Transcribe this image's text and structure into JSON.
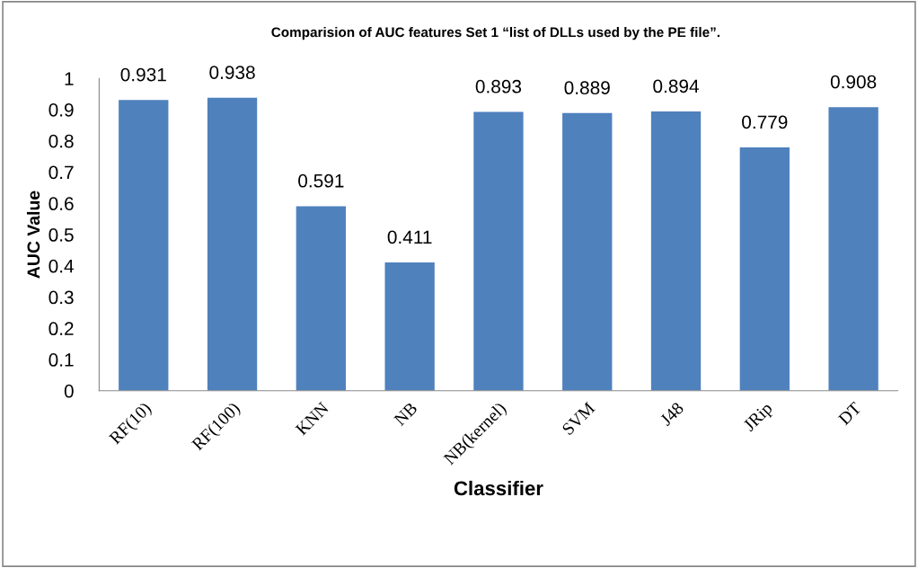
{
  "chart_data": {
    "type": "bar",
    "title": "Comparision of AUC features Set 1 “list of DLLs used by the PE file”.",
    "xlabel": "Classifier",
    "ylabel": "AUC Value",
    "categories": [
      "RF(10)",
      "RF(100)",
      "KNN",
      "NB",
      "NB(kernel)",
      "SVM",
      "J48",
      "JRip",
      "DT"
    ],
    "values": [
      0.931,
      0.938,
      0.591,
      0.411,
      0.893,
      0.889,
      0.894,
      0.779,
      0.908
    ],
    "color": "#4f81bd",
    "data_labels": true,
    "ylim": [
      0,
      1
    ],
    "yticks": [
      0,
      0.1,
      0.2,
      0.3,
      0.4,
      0.5,
      0.6,
      0.7,
      0.8,
      0.9,
      1
    ],
    "grid": false,
    "legend": false
  }
}
